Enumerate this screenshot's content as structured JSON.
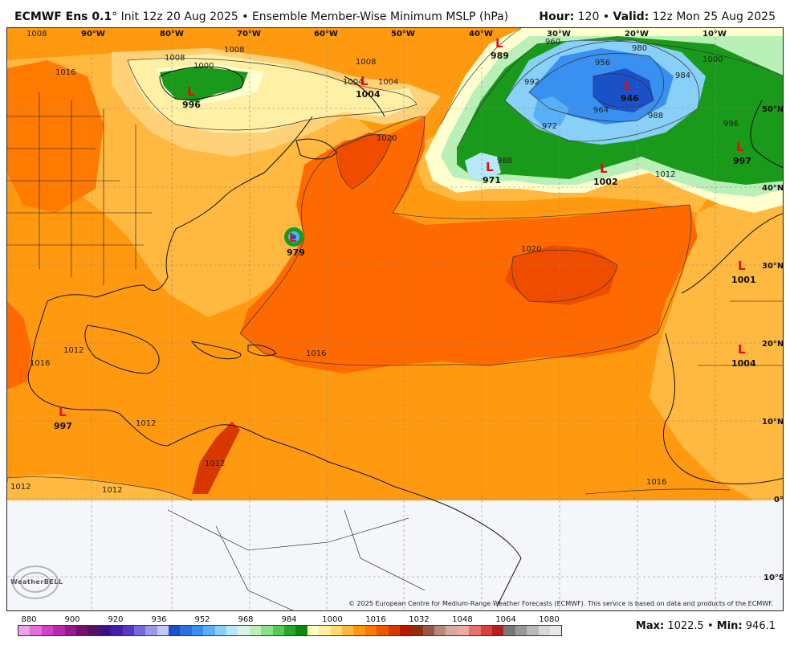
{
  "header": {
    "model": "ECMWF Ens 0.1",
    "degree": "°",
    "init": "Init 12z 20 Aug 2025",
    "sep": "•",
    "product": "Ensemble Member-Wise Minimum MSLP (hPa)",
    "hour_label": "Hour:",
    "hour": "120",
    "valid_label": "Valid:",
    "valid": "12z Mon 25 Aug 2025"
  },
  "longitude_labels": [
    "90°W",
    "80°W",
    "70°W",
    "60°W",
    "50°W",
    "40°W",
    "30°W",
    "20°W",
    "10°W"
  ],
  "latitude_labels": [
    "50°N",
    "40°N",
    "30°N",
    "20°N",
    "10°N",
    "0°",
    "10°S"
  ],
  "lows": [
    {
      "symbol": "L",
      "value": "996"
    },
    {
      "symbol": "L",
      "value": "1004"
    },
    {
      "symbol": "L",
      "value": "989"
    },
    {
      "symbol": "L",
      "value": "946"
    },
    {
      "symbol": "L",
      "value": "997"
    },
    {
      "symbol": "L",
      "value": "971"
    },
    {
      "symbol": "L",
      "value": "1002"
    },
    {
      "symbol": "L",
      "value": "979"
    },
    {
      "symbol": "L",
      "value": "1001"
    },
    {
      "symbol": "L",
      "value": "1004"
    },
    {
      "symbol": "L",
      "value": "997"
    }
  ],
  "contour_labels": [
    "1008",
    "1016",
    "1000",
    "1008",
    "1004",
    "1008",
    "1020",
    "1012",
    "1016",
    "1016",
    "1012",
    "1012",
    "1020",
    "996",
    "1000",
    "984",
    "980",
    "988",
    "960",
    "956",
    "964",
    "972",
    "992",
    "1004",
    "1008",
    "1016",
    "1012",
    "1012",
    "1012",
    "988"
  ],
  "copyright": "© 2025 European Centre for Medium-Range Weather Forecasts (ECMWF). This service is based on data and products of the ECMWF.",
  "logo": "WeatherBELL",
  "colorbar": {
    "labels": [
      "880",
      "900",
      "920",
      "936",
      "952",
      "968",
      "984",
      "1000",
      "1016",
      "1032",
      "1048",
      "1064",
      "1080"
    ],
    "colors": [
      "#f0a0e8",
      "#e070d8",
      "#d040c8",
      "#b828b0",
      "#981890",
      "#781070",
      "#581060",
      "#3a1088",
      "#4020a8",
      "#5838c0",
      "#7868d8",
      "#9a98e8",
      "#c0c8f8",
      "#1a50c8",
      "#2a70e0",
      "#3890f0",
      "#58b0f8",
      "#88d0f8",
      "#b8e8f8",
      "#d8f4e8",
      "#b8f0b8",
      "#88e088",
      "#58c858",
      "#28a828",
      "#108810",
      "#ffffc0",
      "#fff0a0",
      "#ffd870",
      "#ffb840",
      "#ff9810",
      "#ff7800",
      "#f05800",
      "#d83800",
      "#b81800",
      "#883010",
      "#985848",
      "#b88878",
      "#d8a8a0",
      "#f0a8a0",
      "#e87070",
      "#d84040",
      "#b82020",
      "#787878",
      "#989898",
      "#b8b8b8",
      "#d8d8d8",
      "#e8e8e8"
    ]
  },
  "stats": {
    "max_label": "Max:",
    "max": "1022.5",
    "sep": "•",
    "min_label": "Min:",
    "min": "946.1"
  },
  "legend_colors": {
    "p1020": "#ff6a00",
    "p1024": "#f04c00",
    "p1016": "#ff9a10",
    "p1012": "#ffb940",
    "p1008": "#ffd27a",
    "p1004": "#fff0a6",
    "p1000": "#ffffd0",
    "green": "#1a9a1a",
    "nodata": "#f4f6fa"
  }
}
